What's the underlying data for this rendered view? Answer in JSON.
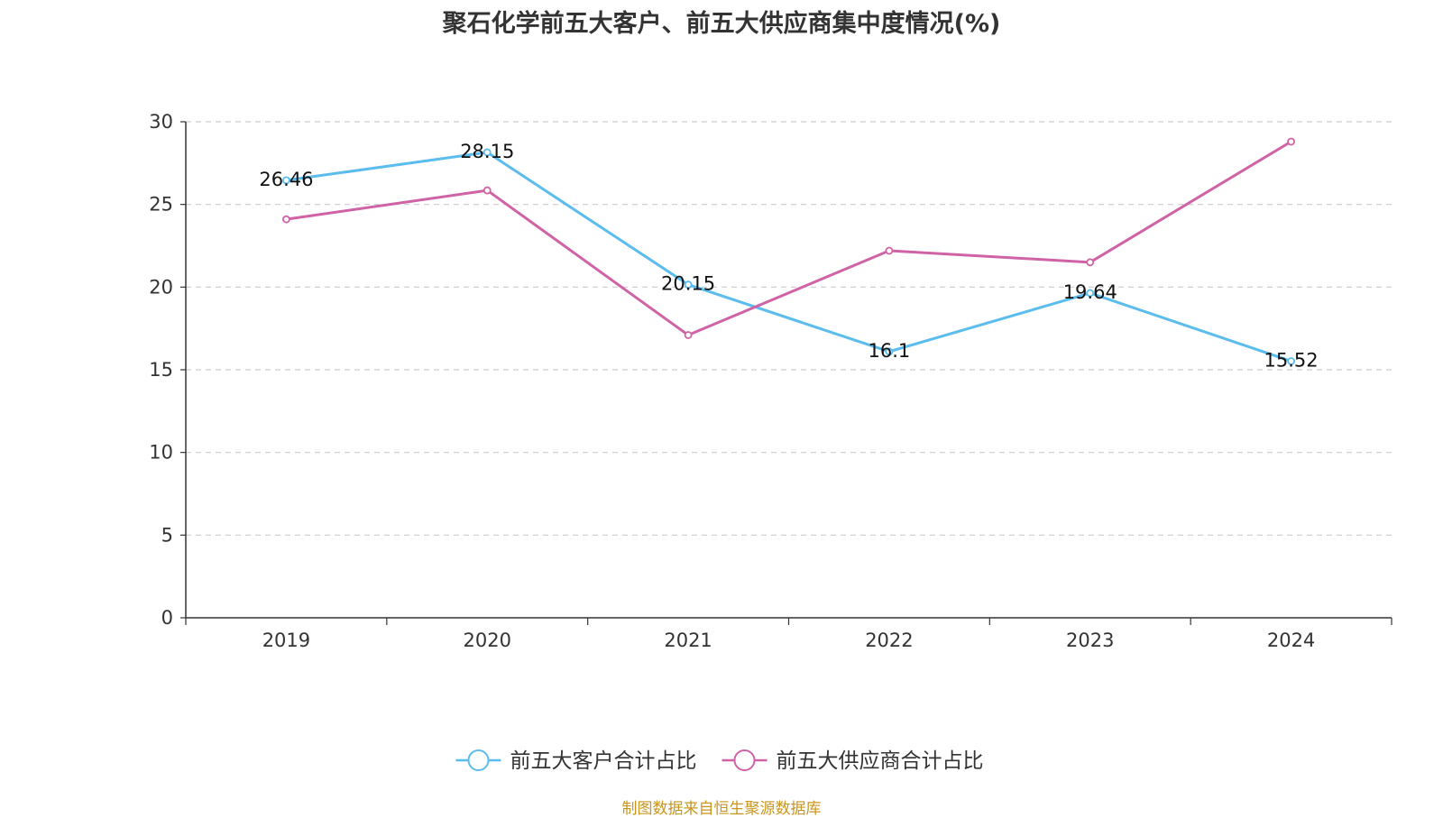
{
  "chart_data": {
    "type": "line",
    "title": "聚石化学前五大客户、前五大供应商集中度情况(%)",
    "categories": [
      "2019",
      "2020",
      "2021",
      "2022",
      "2023",
      "2024"
    ],
    "ylim": [
      0,
      30
    ],
    "yticks": [
      "0",
      "5",
      "10",
      "15",
      "20",
      "25",
      "30"
    ],
    "grid": true,
    "legend_position": "bottom",
    "series": [
      {
        "name": "前五大客户合计占比",
        "color": "#5bbcee",
        "values": [
          26.46,
          28.15,
          20.15,
          16.1,
          19.64,
          15.52
        ],
        "labels": [
          "26.46",
          "28.15",
          "20.15",
          "16.1",
          "19.64",
          "15.52"
        ]
      },
      {
        "name": "前五大供应商合计占比",
        "color": "#d063a6",
        "values": [
          24.1,
          25.85,
          17.1,
          22.2,
          21.5,
          28.8
        ]
      }
    ]
  },
  "source_note": "制图数据来自恒生聚源数据库"
}
